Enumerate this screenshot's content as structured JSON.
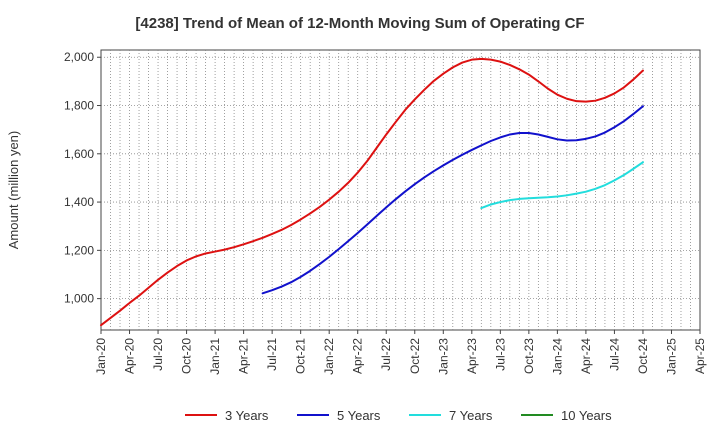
{
  "chart_data": {
    "type": "line",
    "title": "[4238]  Trend of Mean of 12-Month Moving Sum of Operating CF",
    "xlabel": "",
    "ylabel": "Amount (million yen)",
    "ylim": [
      870,
      2030
    ],
    "yticks": [
      1000,
      1200,
      1400,
      1600,
      1800,
      2000
    ],
    "ytick_labels": [
      "1,000",
      "1,200",
      "1,400",
      "1,600",
      "1,800",
      "2,000"
    ],
    "x_tick_labels": [
      "Jan-20",
      "Apr-20",
      "Jul-20",
      "Oct-20",
      "Jan-21",
      "Apr-21",
      "Jul-21",
      "Oct-21",
      "Jan-22",
      "Apr-22",
      "Jul-22",
      "Oct-22",
      "Jan-23",
      "Apr-23",
      "Jul-23",
      "Oct-23",
      "Jan-24",
      "Apr-24",
      "Jul-24",
      "Oct-24",
      "Jan-25",
      "Apr-25"
    ],
    "grid": true,
    "legend_position": "bottom",
    "series": [
      {
        "name": "3 Years",
        "color": "#dd1111",
        "values": [
          890,
          920,
          950,
          982,
          1012,
          1045,
          1078,
          1108,
          1135,
          1158,
          1175,
          1187,
          1195,
          1203,
          1213,
          1225,
          1238,
          1252,
          1268,
          1285,
          1305,
          1328,
          1353,
          1380,
          1410,
          1443,
          1480,
          1522,
          1570,
          1625,
          1680,
          1732,
          1782,
          1825,
          1865,
          1902,
          1932,
          1958,
          1978,
          1990,
          1993,
          1990,
          1982,
          1968,
          1950,
          1928,
          1900,
          1870,
          1845,
          1828,
          1818,
          1816,
          1820,
          1832,
          1850,
          1875,
          1908,
          1945
        ]
      },
      {
        "name": "5 Years",
        "color": "#1111cc",
        "values": [
          null,
          null,
          null,
          null,
          null,
          null,
          null,
          null,
          null,
          null,
          null,
          null,
          null,
          null,
          null,
          null,
          null,
          1022,
          1035,
          1050,
          1068,
          1090,
          1115,
          1143,
          1173,
          1205,
          1238,
          1272,
          1307,
          1343,
          1378,
          1412,
          1444,
          1474,
          1502,
          1528,
          1552,
          1575,
          1596,
          1616,
          1635,
          1653,
          1668,
          1680,
          1686,
          1686,
          1680,
          1670,
          1660,
          1655,
          1656,
          1662,
          1672,
          1688,
          1710,
          1735,
          1765,
          1797
        ]
      },
      {
        "name": "7 Years",
        "color": "#22dddd",
        "values": [
          null,
          null,
          null,
          null,
          null,
          null,
          null,
          null,
          null,
          null,
          null,
          null,
          null,
          null,
          null,
          null,
          null,
          null,
          null,
          null,
          null,
          null,
          null,
          null,
          null,
          null,
          null,
          null,
          null,
          null,
          null,
          null,
          null,
          null,
          null,
          null,
          null,
          null,
          null,
          null,
          1375,
          1390,
          1400,
          1408,
          1413,
          1416,
          1418,
          1420,
          1423,
          1428,
          1435,
          1443,
          1455,
          1470,
          1490,
          1512,
          1538,
          1565
        ]
      },
      {
        "name": "10 Years",
        "color": "#228b22",
        "values": []
      }
    ]
  }
}
